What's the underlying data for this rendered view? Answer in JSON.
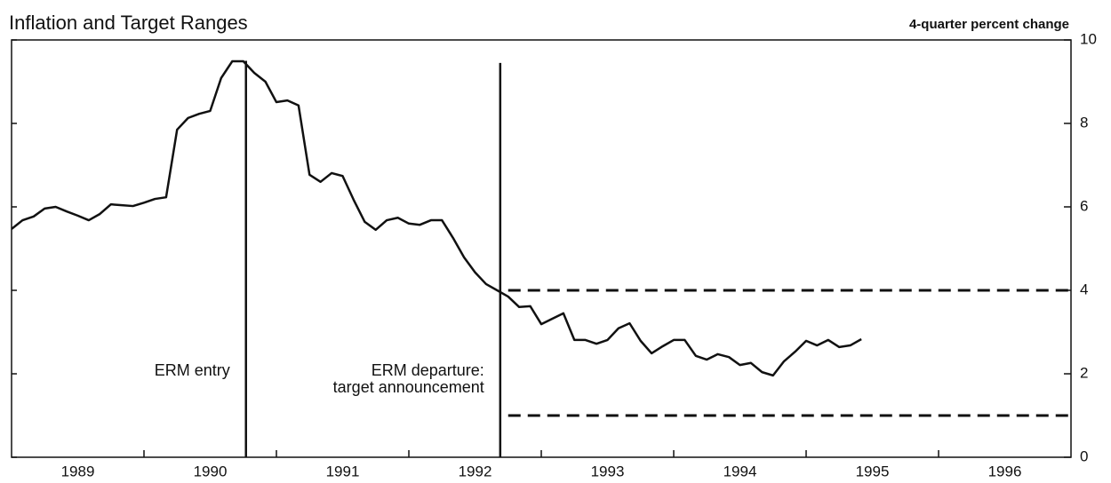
{
  "chart_data": {
    "type": "line",
    "title": "Inflation and Target Ranges",
    "y_axis_label": "4-quarter percent change",
    "xlim": [
      1989,
      1997
    ],
    "xticks": [
      1990,
      1991,
      1992,
      1993,
      1994,
      1995,
      1996
    ],
    "year_labels": [
      "1989",
      "1990",
      "1991",
      "1992",
      "1993",
      "1994",
      "1995",
      "1996"
    ],
    "ylim": [
      0,
      10
    ],
    "yticks": [
      0,
      2,
      4,
      6,
      8,
      10
    ],
    "series": [
      {
        "color": "#111111",
        "x": [
          1989.0,
          1989.083,
          1989.167,
          1989.25,
          1989.333,
          1989.417,
          1989.5,
          1989.583,
          1989.667,
          1989.75,
          1989.833,
          1989.917,
          1990.0,
          1990.083,
          1990.167,
          1990.25,
          1990.333,
          1990.417,
          1990.5,
          1990.583,
          1990.667,
          1990.75,
          1990.833,
          1990.917,
          1991.0,
          1991.083,
          1991.167,
          1991.25,
          1991.333,
          1991.417,
          1991.5,
          1991.583,
          1991.667,
          1991.75,
          1991.833,
          1991.917,
          1992.0,
          1992.083,
          1992.167,
          1992.25,
          1992.333,
          1992.417,
          1992.5,
          1992.583,
          1992.667,
          1992.75,
          1992.833,
          1992.917,
          1993.0,
          1993.083,
          1993.167,
          1993.25,
          1993.333,
          1993.417,
          1993.5,
          1993.583,
          1993.667,
          1993.75,
          1993.833,
          1993.917,
          1994.0,
          1994.083,
          1994.167,
          1994.25,
          1994.333,
          1994.417,
          1994.5,
          1994.583,
          1994.667,
          1994.75,
          1994.833,
          1994.917,
          1995.0,
          1995.083,
          1995.167,
          1995.25,
          1995.333,
          1995.417
        ],
        "values": [
          5.47,
          5.68,
          5.77,
          5.96,
          6.0,
          5.89,
          5.79,
          5.68,
          5.83,
          6.06,
          6.04,
          6.02,
          6.1,
          6.19,
          6.23,
          7.85,
          8.13,
          8.23,
          8.3,
          9.09,
          9.49,
          9.49,
          9.21,
          9.0,
          8.51,
          8.55,
          8.43,
          6.77,
          6.6,
          6.81,
          6.74,
          6.17,
          5.64,
          5.45,
          5.68,
          5.74,
          5.6,
          5.57,
          5.68,
          5.68,
          5.26,
          4.79,
          4.43,
          4.15,
          4.0,
          3.85,
          3.6,
          3.62,
          3.19,
          3.32,
          3.45,
          2.81,
          2.81,
          2.72,
          2.81,
          3.09,
          3.21,
          2.79,
          2.49,
          2.66,
          2.81,
          2.81,
          2.43,
          2.34,
          2.47,
          2.4,
          2.21,
          2.26,
          2.04,
          1.96,
          2.3,
          2.53,
          2.79,
          2.68,
          2.81,
          2.64,
          2.68,
          2.83
        ]
      }
    ],
    "events": [
      {
        "x": 1990.77,
        "ymax": 9.5,
        "label": [
          "ERM entry"
        ]
      },
      {
        "x": 1992.69,
        "ymax": 9.45,
        "label": [
          "ERM departure:",
          "target announcement"
        ]
      }
    ],
    "target_range": {
      "start": 1992.75,
      "end": 1997,
      "upper": 4,
      "lower": 1
    }
  }
}
